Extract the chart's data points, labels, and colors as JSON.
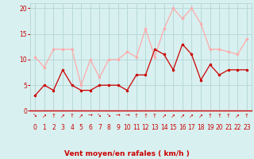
{
  "x": [
    0,
    1,
    2,
    3,
    4,
    5,
    6,
    7,
    8,
    9,
    10,
    11,
    12,
    13,
    14,
    15,
    16,
    17,
    18,
    19,
    20,
    21,
    22,
    23
  ],
  "mean_wind": [
    3,
    5,
    4,
    8,
    5,
    4,
    4,
    5,
    5,
    5,
    4,
    7,
    7,
    12,
    11,
    8,
    13,
    11,
    6,
    9,
    7,
    8,
    8,
    8
  ],
  "gust_wind": [
    10.5,
    8.5,
    12,
    12,
    12,
    5,
    10,
    6.5,
    10,
    10,
    11.5,
    10.5,
    16,
    10.5,
    16,
    20,
    18,
    20,
    17,
    12,
    12,
    11.5,
    11,
    14
  ],
  "mean_color": "#cc0000",
  "gust_color": "#ffaaaa",
  "bg_color": "#d8f0f0",
  "grid_color": "#b8d8d8",
  "xlabel": "Vent moyen/en rafales ( km/h )",
  "xlabel_color": "#cc0000",
  "yticks": [
    0,
    5,
    10,
    15,
    20
  ],
  "xticks": [
    0,
    1,
    2,
    3,
    4,
    5,
    6,
    7,
    8,
    9,
    10,
    11,
    12,
    13,
    14,
    15,
    16,
    17,
    18,
    19,
    20,
    21,
    22,
    23
  ],
  "ylim": [
    0,
    21
  ],
  "xlim": [
    -0.5,
    23.5
  ],
  "arrows": [
    "↘",
    "↗",
    "↑",
    "↗",
    "↑",
    "↗",
    "→",
    "↘",
    "↘",
    "→",
    "→",
    "↑",
    "↑",
    "↑",
    "↗",
    "↗",
    "↗",
    "↗",
    "↗",
    "↑",
    "↑",
    "↑",
    "↗",
    "↑"
  ]
}
